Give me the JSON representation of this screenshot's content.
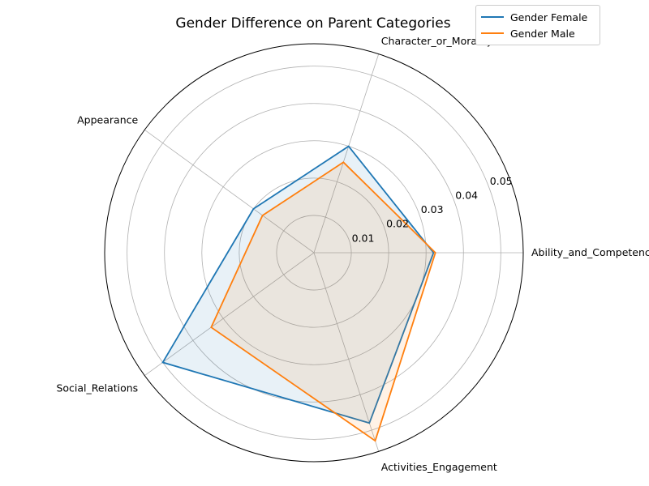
{
  "chart_data": {
    "type": "radar",
    "title": "Gender Difference on Parent Categories",
    "categories": [
      "Ability_and_Competence",
      "Character_or_Morality",
      "Appearance",
      "Social_Relations",
      "Activities_Engagement"
    ],
    "radial_ticks": [
      0.01,
      0.02,
      0.03,
      0.04,
      0.05
    ],
    "radial_tick_labels": [
      "0.01",
      "0.02",
      "0.03",
      "0.04",
      "0.05"
    ],
    "rlim": [
      0,
      0.056
    ],
    "grid": true,
    "legend_position": "top-right",
    "series": [
      {
        "name": "Gender Female",
        "color": "#1f77b4",
        "values": [
          0.032,
          0.03,
          0.02,
          0.05,
          0.048
        ]
      },
      {
        "name": "Gender Male",
        "color": "#ff7f0e",
        "values": [
          0.0325,
          0.0255,
          0.017,
          0.034,
          0.053
        ]
      }
    ]
  }
}
